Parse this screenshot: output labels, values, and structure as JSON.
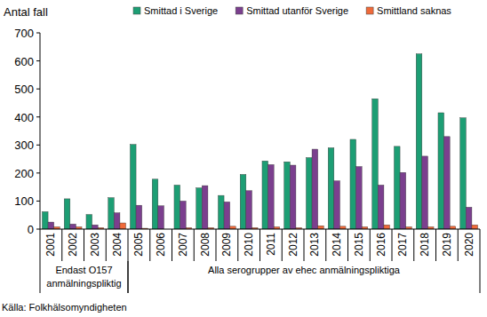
{
  "chart_data": {
    "type": "bar",
    "y_label": "Antal fall",
    "source": "Källa: Folkhälsomyndigheten",
    "categories": [
      "2001",
      "2002",
      "2003",
      "2004",
      "2005",
      "2006",
      "2007",
      "2008",
      "2009",
      "2010",
      "2011",
      "2012",
      "2013",
      "2014",
      "2015",
      "2016",
      "2017",
      "2018",
      "2019",
      "2020"
    ],
    "series": [
      {
        "name": "Smittad i Sverige",
        "color": "#1d9e74",
        "values": [
          62,
          108,
          52,
          112,
          302,
          178,
          157,
          147,
          120,
          195,
          243,
          240,
          255,
          290,
          320,
          465,
          295,
          625,
          415,
          397
        ]
      },
      {
        "name": "Smittad utanför Sverige",
        "color": "#7b3f8e",
        "values": [
          25,
          18,
          15,
          58,
          85,
          83,
          100,
          155,
          97,
          137,
          230,
          228,
          285,
          172,
          223,
          157,
          202,
          260,
          330,
          78
        ]
      },
      {
        "name": "Smittland saknas",
        "color": "#ef6a3a",
        "values": [
          8,
          8,
          5,
          22,
          3,
          0,
          5,
          5,
          10,
          5,
          8,
          5,
          12,
          10,
          8,
          15,
          8,
          8,
          10,
          15
        ]
      }
    ],
    "annotations": [
      {
        "text": [
          "Endast O157",
          "anmälningspliktig"
        ],
        "from": "2001",
        "to": "2004"
      },
      {
        "text": [
          "Alla serogrupper av ehec anmälningspliktiga"
        ],
        "from": "2005",
        "to": "2020"
      }
    ],
    "ylim": [
      0,
      700
    ],
    "yticks": [
      0,
      100,
      200,
      300,
      400,
      500,
      600,
      700
    ],
    "grid": false,
    "legend": "top"
  }
}
